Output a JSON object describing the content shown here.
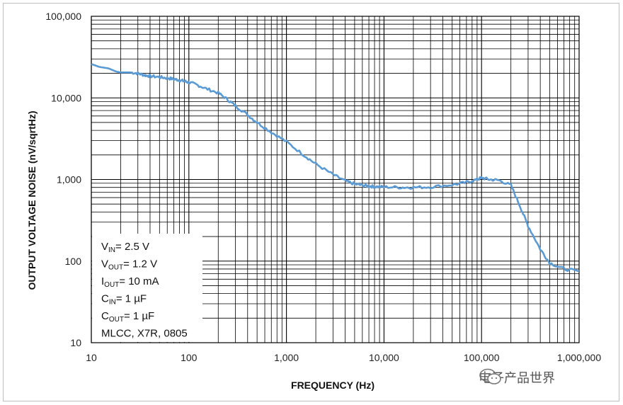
{
  "chart_data": {
    "type": "line",
    "xscale": "log",
    "yscale": "log",
    "xlim": [
      10,
      1000000
    ],
    "ylim": [
      10,
      100000
    ],
    "xlabel": "FREQUENCY (Hz)",
    "ylabel": "OUTPUT VOLTAGE NOISE (nV/sqrtHz)",
    "x_ticks": [
      "10",
      "100",
      "1,000",
      "10,000",
      "100,000",
      "1,000,000"
    ],
    "y_ticks": [
      "10",
      "100",
      "1,000",
      "10,000",
      "100,000"
    ],
    "grid": true,
    "line_color": "#5b9bd5",
    "series": [
      {
        "x": [
          10,
          12,
          15,
          18,
          20,
          25,
          30,
          35,
          40,
          50,
          60,
          70,
          80,
          90,
          100,
          120,
          150,
          200,
          250,
          300,
          400,
          500,
          700,
          1000,
          1500,
          2000,
          3000,
          4000,
          5000,
          6000,
          7000,
          8000,
          10000,
          15000,
          20000,
          30000,
          50000,
          70000,
          90000,
          100000,
          120000,
          150000,
          200000,
          250000,
          300000,
          400000,
          500000,
          700000,
          1000000
        ],
        "y": [
          26000,
          24000,
          23000,
          21000,
          20500,
          20500,
          20000,
          19000,
          18500,
          18000,
          17500,
          17000,
          16500,
          16000,
          15500,
          14500,
          13000,
          11500,
          9500,
          8000,
          6200,
          5000,
          3800,
          2900,
          2000,
          1550,
          1150,
          960,
          880,
          850,
          830,
          820,
          810,
          800,
          800,
          810,
          860,
          920,
          1000,
          1050,
          1000,
          980,
          850,
          460,
          270,
          140,
          95,
          80,
          75
        ]
      }
    ]
  },
  "legend": {
    "lines": [
      {
        "main": "V",
        "sub": "IN",
        "rest": "= 2.5 V"
      },
      {
        "main": "V",
        "sub": "OUT",
        "rest": "= 1.2 V"
      },
      {
        "main": "I",
        "sub": "OUT",
        "rest": "= 10 mA"
      },
      {
        "main": "C",
        "sub": "IN",
        "rest": "= 1 µF"
      },
      {
        "main": "C",
        "sub": "OUT",
        "rest": "= 1 µF"
      },
      {
        "main": "MLCC, X7R, 0805",
        "sub": "",
        "rest": ""
      }
    ]
  },
  "watermark": {
    "text": "电子产品世界",
    "icon": "wechat-icon"
  }
}
